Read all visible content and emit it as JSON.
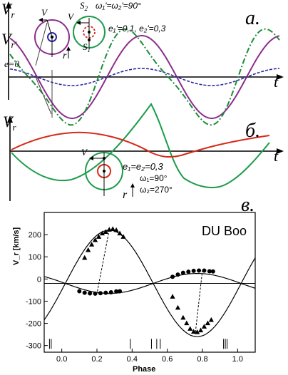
{
  "panel_labels": [
    "а.",
    "б.",
    "в."
  ],
  "axes": {
    "vr": "V",
    "vr_sub": "r",
    "vr_prime_sub": "r'",
    "t": "t"
  },
  "panel_a": {
    "circle_label_e0": "e=0",
    "orbit_label_V": "V",
    "orbit_label_r": "r",
    "s2_label": "S",
    "s2_sub": "2",
    "s1_label": "S",
    "s1_sub": "1",
    "omega_text": "ω₁'=ω₂'=90°",
    "ecc_text": "e₁'=0,1, e₂'=0,3"
  },
  "panel_b": {
    "orbit_label_V": "V",
    "orbit_label_r": "r",
    "ecc_text": "e₁=e₂=0,3",
    "omega1_text": "ω₁=90°",
    "omega2_text": "ω₂=270°"
  },
  "colors": {
    "purple": "#8b2d8b",
    "green": "#1c9c4a",
    "red": "#d62a1a",
    "blue_dash": "#2a2aa0",
    "dashdot_green": "#1c8c3a"
  },
  "chart_data": {
    "type": "scatter",
    "title": "DU Boo",
    "xlabel": "Phase",
    "ylabel": "V_r [km/s]",
    "xlim": [
      -0.1,
      1.1
    ],
    "ylim": [
      -330,
      300
    ],
    "xticks": [
      0.0,
      0.2,
      0.4,
      0.6,
      0.8,
      1.0
    ],
    "xtick_labels": [
      "0.0",
      "0.2",
      "0.4",
      "0.6",
      "0.8",
      "1.0"
    ],
    "yticks": [
      -300,
      -200,
      -100,
      0,
      100,
      200
    ],
    "ytick_labels": [
      "-300",
      "-200",
      "-100",
      "0",
      "100",
      "200"
    ],
    "gamma": -20,
    "series": [
      {
        "marker": "triangle",
        "points": [
          [
            0.13,
            95
          ],
          [
            0.15,
            130
          ],
          [
            0.17,
            155
          ],
          [
            0.19,
            175
          ],
          [
            0.21,
            190
          ],
          [
            0.23,
            205
          ],
          [
            0.25,
            212
          ],
          [
            0.27,
            222
          ],
          [
            0.29,
            225
          ],
          [
            0.31,
            220
          ],
          [
            0.33,
            205
          ],
          [
            0.35,
            190
          ],
          [
            0.63,
            -80
          ],
          [
            0.66,
            -130
          ],
          [
            0.69,
            -175
          ],
          [
            0.71,
            -200
          ],
          [
            0.73,
            -225
          ],
          [
            0.75,
            -238
          ],
          [
            0.77,
            -240
          ],
          [
            0.79,
            -232
          ],
          [
            0.81,
            -215
          ],
          [
            0.83,
            -200
          ],
          [
            0.85,
            -185
          ]
        ]
      },
      {
        "marker": "circle",
        "points": [
          [
            0.1,
            -55
          ],
          [
            0.13,
            -62
          ],
          [
            0.16,
            -65
          ],
          [
            0.19,
            -66
          ],
          [
            0.22,
            -64
          ],
          [
            0.25,
            -62
          ],
          [
            0.28,
            -60
          ],
          [
            0.31,
            -56
          ],
          [
            0.33,
            -55
          ],
          [
            0.63,
            10
          ],
          [
            0.66,
            20
          ],
          [
            0.69,
            28
          ],
          [
            0.72,
            33
          ],
          [
            0.75,
            37
          ],
          [
            0.78,
            38
          ],
          [
            0.81,
            38
          ],
          [
            0.84,
            35
          ],
          [
            0.86,
            34
          ]
        ]
      }
    ],
    "dashed_connectors": [
      [
        [
          0.27,
          222
        ],
        [
          0.2,
          -65
        ]
      ],
      [
        [
          0.76,
          -240
        ],
        [
          0.8,
          40
        ]
      ]
    ],
    "eclipse_ticks": [
      -0.07,
      -0.06,
      0.39,
      0.51,
      0.54,
      0.56,
      0.92,
      0.93,
      0.94
    ]
  }
}
